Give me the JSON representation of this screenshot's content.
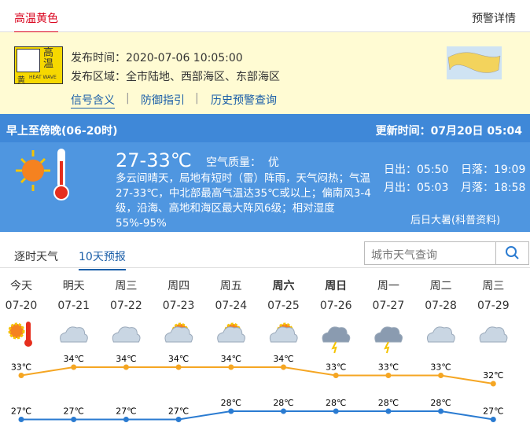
{
  "alert": {
    "tab": "高温黄色",
    "details_link": "预警详情",
    "icon_top": "高温",
    "icon_yellow": "黄",
    "icon_heatwave": "HEAT WAVE",
    "issue_time": "发布时间：2020-07-06 10:05:00",
    "issue_area": "发布区域：全市陆地、西部海区、东部海区",
    "links": [
      "信号含义",
      "防御指引",
      "历史预警查询"
    ]
  },
  "today": {
    "period": "早上至傍晚(06-20时)",
    "updated": "更新时间：07月20日 05:04",
    "temp": "27-33℃",
    "air_quality": "空气质量：  优",
    "description": "多云间晴天，局地有短时（雷）阵雨，天气闷热；气温27-33℃，中北部最高气温达35℃或以上；偏南风3-4级，沿海、高地和海区最大阵风6级；相对湿度55%-95%",
    "sunrise": "日出：05:50",
    "sunset": "日落：19:09",
    "moonrise": "月出：05:03",
    "moonset": "月落：18:58",
    "solar_term": "后日大暑(科普资料)"
  },
  "tabs": [
    "逐时天气",
    "10天预报"
  ],
  "search_placeholder": "城市天气查询",
  "forecast": {
    "days": [
      "今天",
      "明天",
      "周三",
      "周四",
      "周五",
      "周六",
      "周日",
      "周一",
      "周二",
      "周三"
    ],
    "dates": [
      "07-20",
      "07-21",
      "07-22",
      "07-23",
      "07-24",
      "07-25",
      "07-26",
      "07-27",
      "07-28",
      "07-29"
    ],
    "high": {
      "color": "#f5a623",
      "values": [
        33,
        34,
        34,
        34,
        34,
        34,
        33,
        33,
        33,
        32
      ],
      "value_labels": [
        "33℃",
        "34℃",
        "34℃",
        "34℃",
        "34℃",
        "34℃",
        "33℃",
        "33℃",
        "33℃",
        "32℃"
      ]
    },
    "low": {
      "color": "#2a7bd1",
      "values": [
        27,
        27,
        27,
        27,
        28,
        28,
        28,
        28,
        28,
        27
      ],
      "value_labels": [
        "27℃",
        "27℃",
        "27℃",
        "27℃",
        "28℃",
        "28℃",
        "28℃",
        "28℃",
        "28℃",
        "27℃"
      ]
    }
  }
}
